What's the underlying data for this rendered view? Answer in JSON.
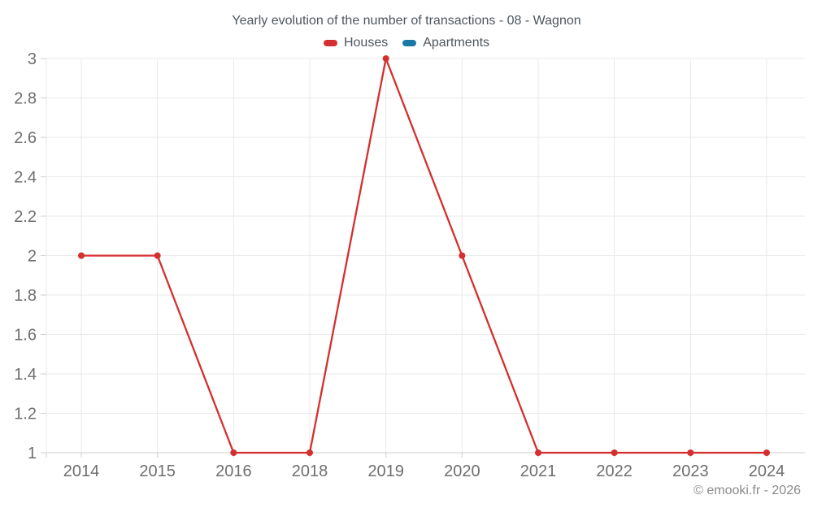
{
  "header": {
    "title": "Yearly evolution of the number of transactions - 08 - Wagnon"
  },
  "legend": {
    "items": [
      {
        "label": "Houses",
        "color": "#d32f2f"
      },
      {
        "label": "Apartments",
        "color": "#1a78a6"
      }
    ]
  },
  "footer": {
    "credit": "© emooki.fr - 2026"
  },
  "colors": {
    "background": "#ffffff",
    "grid_line": "#e9e9e9",
    "axis_line": "#cfcfcf",
    "tick_mark": "#cfcfcf",
    "tick_label": "#6e6e6e",
    "title_text": "#4d565e",
    "footer_text": "#8a8a8a",
    "houses_series": "#d32f2f",
    "apartments_series": "#1a78a6"
  },
  "chart_data": {
    "type": "line",
    "title": "Yearly evolution of the number of transactions - 08 - Wagnon",
    "categories": [
      "2014",
      "2015",
      "2016",
      "2018",
      "2019",
      "2020",
      "2021",
      "2022",
      "2023",
      "2024"
    ],
    "series": [
      {
        "name": "Houses",
        "color": "#d32f2f",
        "values": [
          2,
          2,
          1,
          1,
          3,
          2,
          1,
          1,
          1,
          1
        ]
      },
      {
        "name": "Apartments",
        "color": "#1a78a6",
        "values": []
      }
    ],
    "xlabel": "",
    "ylabel": "",
    "ylim": [
      1,
      3
    ],
    "yticks": [
      1,
      1.2,
      1.4,
      1.6,
      1.8,
      2,
      2.2,
      2.4,
      2.6,
      2.8,
      3
    ],
    "grid": true,
    "legend_position": "top",
    "marker": "circle"
  }
}
